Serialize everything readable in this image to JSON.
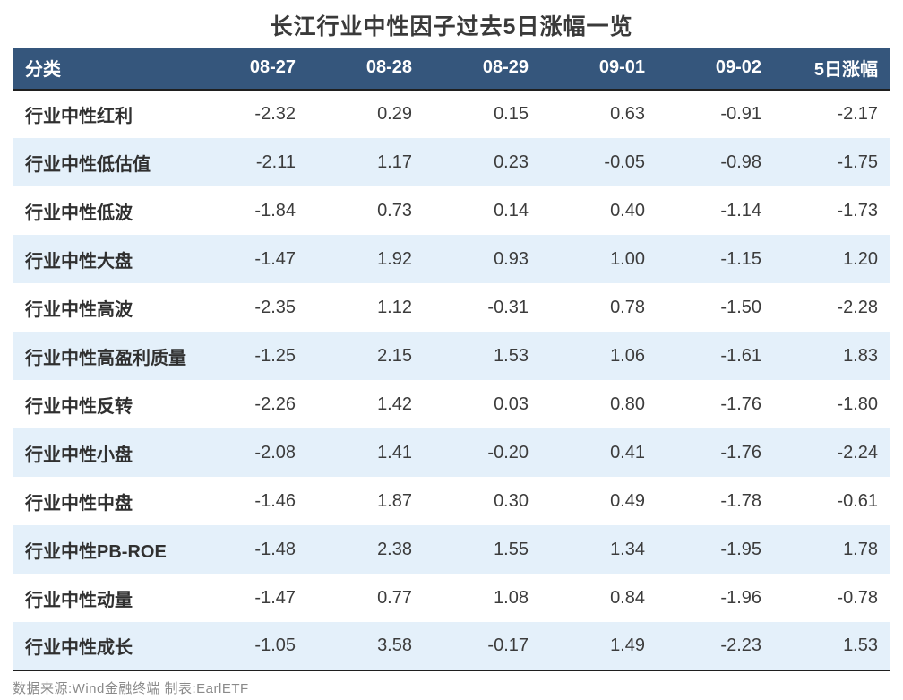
{
  "title": "长江行业中性因子过去5日涨幅一览",
  "footer": "数据来源:Wind金融终端 制表:EarlETF",
  "colors": {
    "header_bg": "#35567C",
    "header_text": "#FFFFFF",
    "row_alt_bg": "#E4F0FA",
    "row_bg": "#FFFFFF",
    "rule_dark": "#1F1F1F",
    "title_text": "#3A3A3A",
    "body_text": "#3C3C3C",
    "footer_text": "#8A8A8A"
  },
  "chart_data": {
    "type": "table",
    "title": "长江行业中性因子过去5日涨幅一览",
    "columns": [
      "分类",
      "08-27",
      "08-28",
      "08-29",
      "09-01",
      "09-02",
      "5日涨幅"
    ],
    "rows": [
      [
        "行业中性红利",
        "-2.32",
        "0.29",
        "0.15",
        "0.63",
        "-0.91",
        "-2.17"
      ],
      [
        "行业中性低估值",
        "-2.11",
        "1.17",
        "0.23",
        "-0.05",
        "-0.98",
        "-1.75"
      ],
      [
        "行业中性低波",
        "-1.84",
        "0.73",
        "0.14",
        "0.40",
        "-1.14",
        "-1.73"
      ],
      [
        "行业中性大盘",
        "-1.47",
        "1.92",
        "0.93",
        "1.00",
        "-1.15",
        "1.20"
      ],
      [
        "行业中性高波",
        "-2.35",
        "1.12",
        "-0.31",
        "0.78",
        "-1.50",
        "-2.28"
      ],
      [
        "行业中性高盈利质量",
        "-1.25",
        "2.15",
        "1.53",
        "1.06",
        "-1.61",
        "1.83"
      ],
      [
        "行业中性反转",
        "-2.26",
        "1.42",
        "0.03",
        "0.80",
        "-1.76",
        "-1.80"
      ],
      [
        "行业中性小盘",
        "-2.08",
        "1.41",
        "-0.20",
        "0.41",
        "-1.76",
        "-2.24"
      ],
      [
        "行业中性中盘",
        "-1.46",
        "1.87",
        "0.30",
        "0.49",
        "-1.78",
        "-0.61"
      ],
      [
        "行业中性PB-ROE",
        "-1.48",
        "2.38",
        "1.55",
        "1.34",
        "-1.95",
        "1.78"
      ],
      [
        "行业中性动量",
        "-1.47",
        "0.77",
        "1.08",
        "0.84",
        "-1.96",
        "-0.78"
      ],
      [
        "行业中性成长",
        "-1.05",
        "3.58",
        "-0.17",
        "1.49",
        "-2.23",
        "1.53"
      ]
    ]
  }
}
